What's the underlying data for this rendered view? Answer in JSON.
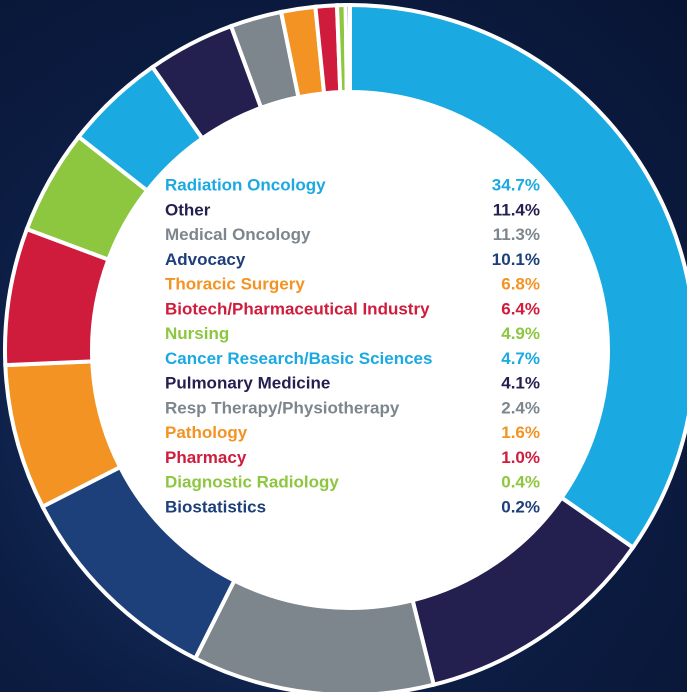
{
  "chart_data": {
    "type": "donut",
    "categories": [
      "Radiation Oncology",
      "Other",
      "Medical Oncology",
      "Advocacy",
      "Thoracic Surgery",
      "Biotech/Pharmaceutical Industry",
      "Nursing",
      "Cancer Research/Basic Sciences",
      "Pulmonary Medicine",
      "Resp Therapy/Physiotherapy",
      "Pathology",
      "Pharmacy",
      "Diagnostic Radiology",
      "Biostatistics"
    ],
    "values": [
      34.7,
      11.4,
      11.3,
      10.1,
      6.8,
      6.4,
      4.9,
      4.7,
      4.1,
      2.4,
      1.6,
      1.0,
      0.4,
      0.2
    ],
    "value_labels": [
      "34.7%",
      "11.4%",
      "11.3%",
      "10.1%",
      "6.8%",
      "6.4%",
      "4.9%",
      "4.7%",
      "4.1%",
      "2.4%",
      "1.6%",
      "1.0%",
      "0.4%",
      "0.2%"
    ],
    "colors": [
      "#1ba9e1",
      "#231f4f",
      "#7d868c",
      "#1d3f7a",
      "#f39323",
      "#cf1c3c",
      "#8dc63f",
      "#1ba9e1",
      "#231f4f",
      "#7d868c",
      "#f39323",
      "#cf1c3c",
      "#8dc63f",
      "#1d3f7a"
    ]
  }
}
